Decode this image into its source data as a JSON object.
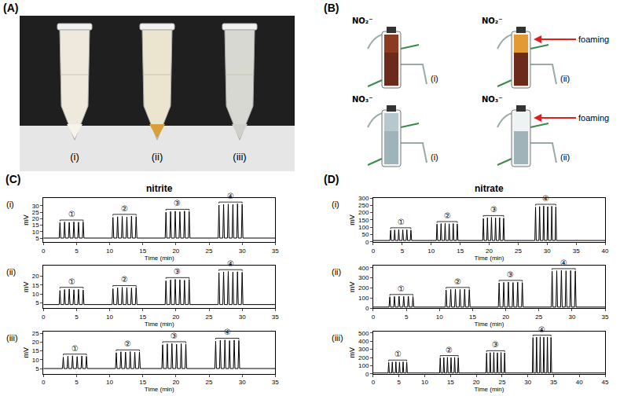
{
  "panels": {
    "A": {
      "label": "(A)",
      "tubes": [
        "(i)",
        "(ii)",
        "(iii)"
      ]
    },
    "B": {
      "label": "(B)",
      "images": [
        {
          "ion": "NO₂⁻",
          "label": "(i)"
        },
        {
          "ion": "NO₂⁻",
          "label": "(ii)",
          "note": "foaming"
        },
        {
          "ion": "NO₃⁻",
          "label": "(i)"
        },
        {
          "ion": "NO₃⁻",
          "label": "(ii)",
          "note": "foaming"
        }
      ]
    }
  },
  "chart_data": [
    {
      "type": "line",
      "title": "nitrite",
      "panel_label": "(C)",
      "subplots": [
        {
          "label": "(i)",
          "x_label": "Time (min)",
          "y_label": "mV",
          "color": "#000000",
          "baseline": 5,
          "xlim": [
            0,
            35
          ],
          "xticks": [
            0,
            5,
            10,
            15,
            20,
            25,
            30,
            35
          ],
          "ylim": [
            2,
            36
          ],
          "yticks": [
            5,
            10,
            15,
            20,
            25,
            30
          ],
          "peaks": [
            {
              "label": "①",
              "x": [
                2.5,
                3.2,
                3.9,
                4.6,
                5.3,
                6.0
              ],
              "values": [
                17,
                17.5,
                17.2,
                17.6,
                17.3,
                17.5
              ]
            },
            {
              "label": "②",
              "x": [
                10.5,
                11.2,
                11.9,
                12.6,
                13.3,
                14.0
              ],
              "values": [
                21,
                21.5,
                21.8,
                21.4,
                22,
                21.6
              ]
            },
            {
              "label": "③",
              "x": [
                18.5,
                19.2,
                19.9,
                20.6,
                21.3,
                22.0
              ],
              "values": [
                25,
                25.5,
                25.8,
                25.4,
                25.9,
                25.6
              ]
            },
            {
              "label": "④",
              "x": [
                26.5,
                27.2,
                27.9,
                28.6,
                29.3,
                30.0
              ],
              "values": [
                30.5,
                31,
                31.3,
                31,
                31.5,
                31.2
              ]
            }
          ]
        },
        {
          "label": "(ii)",
          "x_label": "Time (min)",
          "y_label": "mV",
          "color": "#000000",
          "baseline": 4,
          "xlim": [
            0,
            35
          ],
          "xticks": [
            0,
            5,
            10,
            15,
            20,
            25,
            30,
            35
          ],
          "ylim": [
            2,
            26
          ],
          "yticks": [
            5,
            10,
            15,
            20
          ],
          "peaks": [
            {
              "label": "①",
              "x": [
                2.5,
                3.2,
                3.9,
                4.6,
                5.3,
                6.0
              ],
              "values": [
                12,
                12.5,
                12.8,
                12.4,
                12.6,
                12.3
              ]
            },
            {
              "label": "②",
              "x": [
                10.5,
                11.2,
                11.9,
                12.6,
                13.3,
                14.0
              ],
              "values": [
                13,
                13.5,
                13.8,
                13.6,
                13.4,
                13.7
              ]
            },
            {
              "label": "③",
              "x": [
                18.5,
                19.2,
                19.9,
                20.6,
                21.3,
                22.0
              ],
              "values": [
                17.5,
                18,
                18.3,
                18.1,
                17.8,
                18.2
              ]
            },
            {
              "label": "④",
              "x": [
                26.5,
                27.2,
                27.9,
                28.6,
                29.3,
                30.0
              ],
              "values": [
                22,
                22.5,
                22.8,
                22.4,
                22.6,
                22.3
              ]
            }
          ]
        },
        {
          "label": "(iii)",
          "x_label": "Time (min)",
          "y_label": "mV",
          "color": "#000000",
          "baseline": 5,
          "xlim": [
            0,
            35
          ],
          "xticks": [
            0,
            5,
            10,
            15,
            20,
            25,
            30,
            35
          ],
          "ylim": [
            2,
            26
          ],
          "yticks": [
            5,
            10,
            15,
            20,
            25
          ],
          "peaks": [
            {
              "label": "①",
              "x": [
                3.0,
                3.7,
                4.4,
                5.1,
                5.8,
                6.5
              ],
              "values": [
                11.5,
                12,
                12.2,
                11.8,
                12.1,
                11.9
              ]
            },
            {
              "label": "②",
              "x": [
                11.0,
                11.7,
                12.4,
                13.1,
                13.8,
                14.5
              ],
              "values": [
                14,
                14.5,
                14.3,
                14.6,
                14.2,
                14.4
              ]
            },
            {
              "label": "③",
              "x": [
                18.0,
                18.7,
                19.4,
                20.1,
                20.8,
                21.5
              ],
              "values": [
                18.5,
                19,
                19.2,
                18.8,
                19.1,
                18.9
              ]
            },
            {
              "label": "④",
              "x": [
                26.0,
                26.7,
                27.4,
                28.1,
                28.8,
                29.5
              ],
              "values": [
                20.5,
                21,
                21.2,
                20.8,
                21.1,
                20.9
              ]
            }
          ]
        }
      ]
    },
    {
      "type": "line",
      "title": "nitrate",
      "panel_label": "(D)",
      "subplots": [
        {
          "label": "(i)",
          "x_label": "Time (min)",
          "y_label": "mV",
          "color": "#000000",
          "baseline": 10,
          "xlim": [
            0,
            40
          ],
          "xticks": [
            0,
            5,
            10,
            15,
            20,
            25,
            30,
            35,
            40
          ],
          "ylim": [
            0,
            300
          ],
          "yticks": [
            0,
            50,
            100,
            150,
            200,
            250,
            300
          ],
          "peaks": [
            {
              "label": "①",
              "x": [
                3.0,
                3.7,
                4.4,
                5.1,
                5.8,
                6.5
              ],
              "values": [
                80,
                82,
                85,
                83,
                84,
                81
              ]
            },
            {
              "label": "②",
              "x": [
                11.0,
                11.7,
                12.4,
                13.1,
                13.8,
                14.5
              ],
              "values": [
                122,
                125,
                127,
                124,
                126,
                123
              ]
            },
            {
              "label": "③",
              "x": [
                19.0,
                19.7,
                20.4,
                21.1,
                21.8,
                22.5
              ],
              "values": [
                160,
                165,
                168,
                164,
                166,
                163
              ]
            },
            {
              "label": "④",
              "x": [
                28.0,
                28.7,
                29.4,
                30.1,
                30.8,
                31.5
              ],
              "values": [
                238,
                242,
                245,
                241,
                244,
                240
              ]
            }
          ]
        },
        {
          "label": "(ii)",
          "x_label": "Time (min)",
          "y_label": "mV",
          "color": "#000000",
          "baseline": 10,
          "xlim": [
            0,
            35
          ],
          "xticks": [
            0,
            5,
            10,
            15,
            20,
            25,
            30,
            35
          ],
          "ylim": [
            0,
            420
          ],
          "yticks": [
            0,
            100,
            200,
            300,
            400
          ],
          "peaks": [
            {
              "label": "①",
              "x": [
                2.5,
                3.2,
                3.9,
                4.6,
                5.3,
                6.0
              ],
              "values": [
                112,
                115,
                118,
                116,
                117,
                114
              ]
            },
            {
              "label": "②",
              "x": [
                11.0,
                11.7,
                12.4,
                13.1,
                13.8,
                14.5
              ],
              "values": [
                180,
                185,
                188,
                184,
                187,
                183
              ]
            },
            {
              "label": "③",
              "x": [
                19.0,
                19.7,
                20.4,
                21.1,
                21.8,
                22.5
              ],
              "values": [
                250,
                255,
                258,
                254,
                257,
                253
              ]
            },
            {
              "label": "④",
              "x": [
                27.0,
                27.7,
                28.4,
                29.1,
                29.8,
                30.5
              ],
              "values": [
                365,
                370,
                374,
                369,
                372,
                368
              ]
            }
          ]
        },
        {
          "label": "(iii)",
          "x_label": "Time (min)",
          "y_label": "mV",
          "color": "#000000",
          "baseline": 10,
          "xlim": [
            0,
            45
          ],
          "xticks": [
            0,
            5,
            10,
            15,
            20,
            25,
            30,
            35,
            40,
            45
          ],
          "ylim": [
            0,
            520
          ],
          "yticks": [
            0,
            100,
            200,
            300,
            400,
            500
          ],
          "peaks": [
            {
              "label": "①",
              "x": [
                3.0,
                3.7,
                4.4,
                5.1,
                5.8,
                6.5
              ],
              "values": [
                142,
                145,
                148,
                144,
                147,
                143
              ]
            },
            {
              "label": "②",
              "x": [
                13.0,
                13.7,
                14.4,
                15.1,
                15.8,
                16.5
              ],
              "values": [
                196,
                200,
                203,
                199,
                202,
                198
              ]
            },
            {
              "label": "③",
              "x": [
                22.0,
                22.7,
                23.4,
                24.1,
                24.8,
                25.5
              ],
              "values": [
                255,
                260,
                263,
                259,
                262,
                258
              ]
            },
            {
              "label": "④",
              "x": [
                31.0,
                31.7,
                32.4,
                33.1,
                33.8,
                34.5
              ],
              "values": [
                445,
                450,
                454,
                449,
                452,
                448
              ]
            }
          ]
        }
      ]
    }
  ]
}
